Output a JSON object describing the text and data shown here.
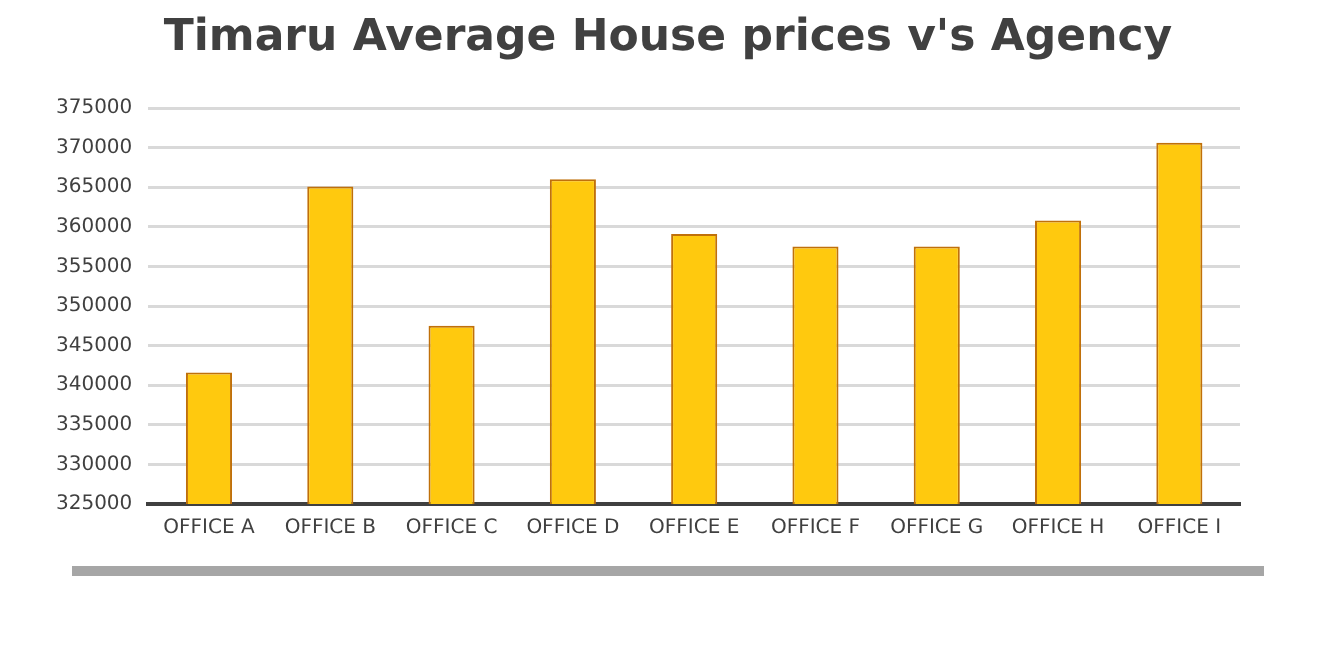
{
  "chart_data": {
    "type": "bar",
    "title": "Timaru Average House prices v's Agency",
    "categories": [
      "OFFICE A",
      "OFFICE B",
      "OFFICE C",
      "OFFICE D",
      "OFFICE E",
      "OFFICE F",
      "OFFICE G",
      "OFFICE H",
      "OFFICE I"
    ],
    "values": [
      341600,
      365100,
      347500,
      366000,
      359100,
      357500,
      357500,
      360800,
      370600
    ],
    "color": "#ffc90e",
    "ylim": [
      325000,
      375000
    ],
    "yticks": [
      325000,
      330000,
      335000,
      340000,
      345000,
      350000,
      355000,
      360000,
      365000,
      370000,
      375000
    ],
    "grid": "y",
    "legend": false
  }
}
